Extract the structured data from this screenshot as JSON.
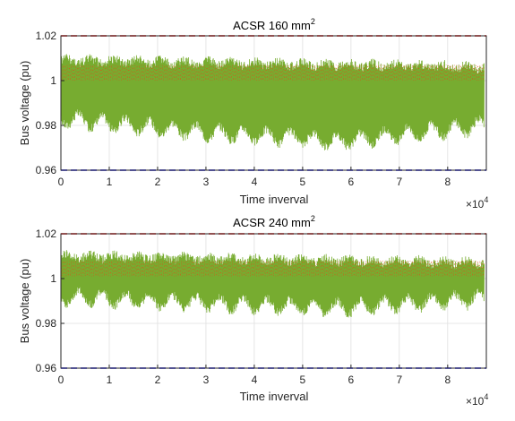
{
  "chart_data": [
    {
      "type": "line",
      "title": "ACSR 160 mm",
      "title_superscript": "2",
      "xlabel": "Time inverval",
      "ylabel": "Bus voltage (pu)",
      "xlim": [
        0,
        88000
      ],
      "ylim": [
        0.96,
        1.02
      ],
      "x_tick_labels": [
        "0",
        "1",
        "2",
        "3",
        "4",
        "5",
        "6",
        "7",
        "8"
      ],
      "y_tick_labels": [
        "0.96",
        "0.98",
        "1",
        "1.02"
      ],
      "x_multiplier_base": "×10",
      "x_multiplier_exp": "4",
      "grid": true,
      "series": [
        {
          "color": "#77ac30",
          "style": "dense-oscillation",
          "lower_envelope": [
            0.978,
            0.972,
            0.968,
            0.975
          ],
          "upper_envelope": [
            1.012,
            1.011,
            1.01,
            1.009
          ]
        },
        {
          "color": "#d95319",
          "style": "dotted",
          "values": [
            1.007,
            1.0
          ]
        },
        {
          "color": "#ff0000",
          "style": "dashed",
          "value": 1.02
        },
        {
          "color": "#0000ff",
          "style": "dashed",
          "value": 0.96
        }
      ]
    },
    {
      "type": "line",
      "title": "ACSR 240 mm",
      "title_superscript": "2",
      "xlabel": "Time inverval",
      "ylabel": "Bus voltage (pu)",
      "xlim": [
        0,
        88000
      ],
      "ylim": [
        0.96,
        1.02
      ],
      "x_tick_labels": [
        "0",
        "1",
        "2",
        "3",
        "4",
        "5",
        "6",
        "7",
        "8"
      ],
      "y_tick_labels": [
        "0.96",
        "0.98",
        "1",
        "1.02"
      ],
      "x_multiplier_base": "×10",
      "x_multiplier_exp": "4",
      "grid": true,
      "series": [
        {
          "color": "#77ac30",
          "style": "dense-oscillation",
          "lower_envelope": [
            0.987,
            0.984,
            0.982,
            0.986
          ],
          "upper_envelope": [
            1.013,
            1.012,
            1.011,
            1.01
          ]
        },
        {
          "color": "#d95319",
          "style": "dotted",
          "values": [
            1.008,
            1.001
          ]
        },
        {
          "color": "#ff0000",
          "style": "dashed",
          "value": 1.02
        },
        {
          "color": "#0000ff",
          "style": "dashed",
          "value": 0.96
        }
      ]
    }
  ]
}
